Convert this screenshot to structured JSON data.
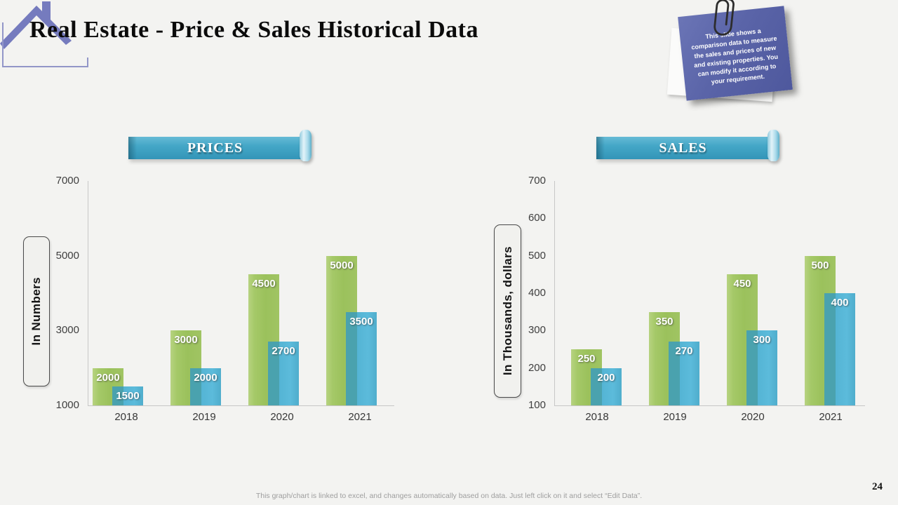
{
  "slide": {
    "title": "Real Estate - Price & Sales Historical Data",
    "page_number": "24",
    "footer": "This graph/chart is linked to excel, and changes automatically based on data. Just left click on it and select “Edit Data”.",
    "sticky_note_text": "This slide shows a comparison data to measure the sales and prices of new and existing properties. You can modify it according to your requirement."
  },
  "colors": {
    "background": "#f3f3f1",
    "ribbon_teal": "#42A6C6",
    "note_purple": "#55609F",
    "series_green": "#9CC25D",
    "series_blue": "#4FB1D1",
    "house_roof_purple": "#757BBE",
    "axis_gray": "#C7C7C7"
  },
  "chart_data": [
    {
      "type": "bar",
      "title": "PRICES",
      "ylabel": "In Numbers",
      "xlabel": "",
      "categories": [
        "2018",
        "2019",
        "2020",
        "2021"
      ],
      "series": [
        {
          "color": "#9CC25D",
          "values": [
            2000,
            3000,
            4500,
            5000
          ]
        },
        {
          "color": "#4FB1D1",
          "values": [
            1500,
            2000,
            2700,
            3500
          ]
        }
      ],
      "ylim": [
        1000,
        7000
      ],
      "yticks": [
        1000,
        3000,
        5000,
        7000
      ],
      "grid": false,
      "legend": "none",
      "data_labels": "inside-end, white"
    },
    {
      "type": "bar",
      "title": "SALES",
      "ylabel": "In Thousands, dollars",
      "xlabel": "",
      "categories": [
        "2018",
        "2019",
        "2020",
        "2021"
      ],
      "series": [
        {
          "color": "#9CC25D",
          "values": [
            250,
            350,
            450,
            500
          ]
        },
        {
          "color": "#4FB1D1",
          "values": [
            200,
            270,
            300,
            400
          ]
        }
      ],
      "ylim": [
        100,
        700
      ],
      "yticks": [
        100,
        200,
        300,
        400,
        500,
        600,
        700
      ],
      "grid": false,
      "legend": "none",
      "data_labels": "inside-end, white"
    }
  ]
}
